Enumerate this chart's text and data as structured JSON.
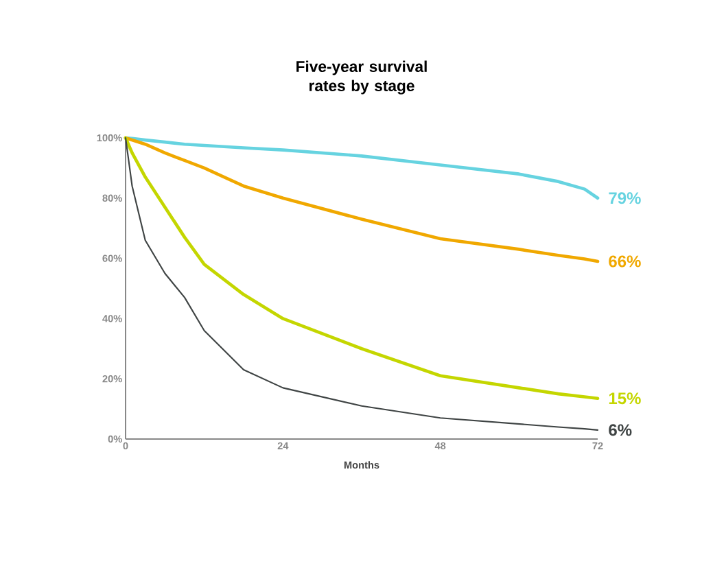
{
  "chart_data": {
    "type": "line",
    "title": "Five-year survival rates by stage",
    "xlabel": "Months",
    "xlim": [
      0,
      72
    ],
    "ylim": [
      0,
      100
    ],
    "xticks": [
      0,
      24,
      48,
      72
    ],
    "yticks": [
      {
        "value": 0,
        "label": "0%"
      },
      {
        "value": 20,
        "label": "20%"
      },
      {
        "value": 40,
        "label": "40%"
      },
      {
        "value": 60,
        "label": "60%"
      },
      {
        "value": 80,
        "label": "80%"
      },
      {
        "value": 100,
        "label": "100%"
      }
    ],
    "grid": false,
    "legend": false,
    "marker": "none",
    "line_style": "solid",
    "x": [
      0,
      1,
      3,
      6,
      9,
      12,
      18,
      24,
      36,
      48,
      60,
      66,
      70,
      72
    ],
    "series": [
      {
        "name": "79%",
        "color": "#66d3e0",
        "values": [
          100,
          99.8,
          99.3,
          98.6,
          97.9,
          97.5,
          96.7,
          96,
          94,
          91,
          88,
          85.5,
          83,
          80
        ]
      },
      {
        "name": "66%",
        "color": "#f0a800",
        "values": [
          100,
          99.3,
          97.9,
          95,
          92.5,
          90,
          84,
          80,
          73,
          66.5,
          63,
          61,
          59.8,
          59
        ]
      },
      {
        "name": "15%",
        "color": "#c4d600",
        "values": [
          100,
          95,
          87,
          77,
          67,
          58,
          48,
          40,
          30,
          21,
          17,
          15,
          14,
          13.5
        ]
      },
      {
        "name": "6%",
        "color": "#3f4444",
        "values": [
          100,
          84,
          66,
          55,
          47,
          36,
          23,
          17,
          11,
          7,
          5,
          4,
          3.4,
          3
        ]
      }
    ]
  }
}
